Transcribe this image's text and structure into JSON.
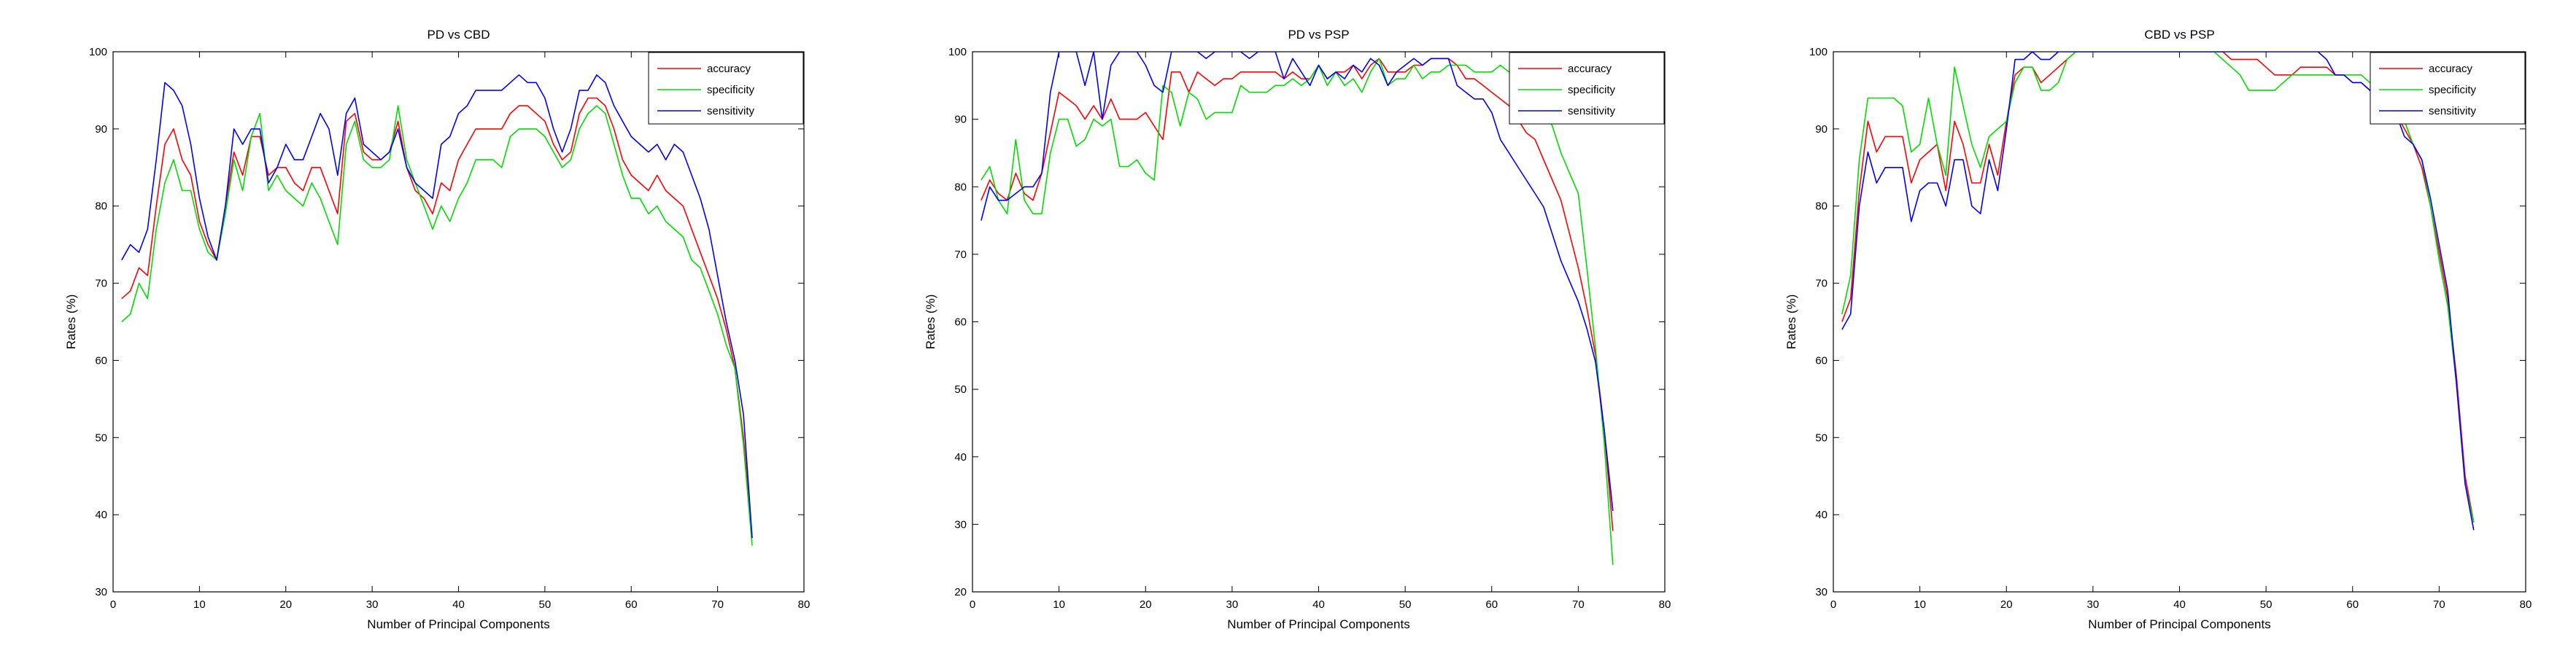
{
  "chart_data": [
    {
      "type": "line",
      "title": "PD vs CBD",
      "xlabel": "Number of Principal Components",
      "ylabel": "Rates (%)",
      "xlim": [
        0,
        80
      ],
      "ylim": [
        30,
        100
      ],
      "xticks": [
        "0",
        "10",
        "20",
        "30",
        "40",
        "50",
        "60",
        "70",
        "80"
      ],
      "yticks": [
        "30",
        "40",
        "50",
        "60",
        "70",
        "80",
        "90",
        "100"
      ],
      "grid": false,
      "legend_position": "top-right",
      "x": [
        1,
        2,
        3,
        4,
        5,
        6,
        7,
        8,
        9,
        10,
        11,
        12,
        13,
        14,
        15,
        16,
        17,
        18,
        19,
        20,
        21,
        22,
        23,
        24,
        25,
        26,
        27,
        28,
        29,
        30,
        31,
        32,
        33,
        34,
        35,
        36,
        37,
        38,
        39,
        40,
        41,
        42,
        43,
        44,
        45,
        46,
        47,
        48,
        49,
        50,
        51,
        52,
        53,
        54,
        55,
        56,
        57,
        58,
        59,
        60,
        61,
        62,
        63,
        64,
        65,
        66,
        67,
        68,
        69,
        70,
        71,
        72,
        73,
        74
      ],
      "series": [
        {
          "name": "accuracy",
          "color": "#ff0000",
          "values": [
            68,
            69,
            72,
            71,
            80,
            88,
            90,
            86,
            84,
            78,
            75,
            73,
            80,
            87,
            84,
            89,
            89,
            84,
            85,
            85,
            83,
            82,
            85,
            85,
            82,
            79,
            91,
            92,
            87,
            86,
            86,
            87,
            91,
            85,
            82,
            81,
            79,
            83,
            82,
            86,
            88,
            90,
            90,
            90,
            90,
            92,
            93,
            93,
            92,
            91,
            88,
            86,
            87,
            92,
            94,
            94,
            93,
            90,
            86,
            84,
            83,
            82,
            84,
            82,
            81,
            80,
            77,
            74,
            71,
            68,
            64,
            59,
            50,
            37
          ]
        },
        {
          "name": "specificity",
          "color": "#00dd00",
          "values": [
            65,
            66,
            70,
            68,
            77,
            83,
            86,
            82,
            82,
            77,
            74,
            73,
            79,
            86,
            82,
            89,
            92,
            82,
            84,
            82,
            81,
            80,
            83,
            81,
            78,
            75,
            88,
            91,
            86,
            85,
            85,
            86,
            93,
            86,
            83,
            80,
            77,
            80,
            78,
            81,
            83,
            86,
            86,
            86,
            85,
            89,
            90,
            90,
            90,
            89,
            87,
            85,
            86,
            90,
            92,
            93,
            92,
            88,
            84,
            81,
            81,
            79,
            80,
            78,
            77,
            76,
            73,
            72,
            69,
            66,
            62,
            59,
            49,
            36
          ]
        },
        {
          "name": "sensitivity",
          "color": "#0000ff",
          "values": [
            73,
            75,
            74,
            77,
            86,
            96,
            95,
            93,
            88,
            81,
            76,
            73,
            80,
            90,
            88,
            90,
            90,
            83,
            85,
            88,
            86,
            86,
            89,
            92,
            90,
            84,
            92,
            94,
            88,
            87,
            86,
            87,
            90,
            85,
            83,
            82,
            81,
            88,
            89,
            92,
            93,
            95,
            95,
            95,
            95,
            96,
            97,
            96,
            96,
            94,
            90,
            87,
            90,
            95,
            95,
            97,
            96,
            93,
            91,
            89,
            88,
            87,
            88,
            86,
            88,
            87,
            84,
            81,
            77,
            71,
            65,
            60,
            53,
            37
          ]
        }
      ]
    },
    {
      "type": "line",
      "title": "PD vs PSP",
      "xlabel": "Number of Principal Components",
      "ylabel": "Rates (%)",
      "xlim": [
        0,
        80
      ],
      "ylim": [
        20,
        100
      ],
      "xticks": [
        "0",
        "10",
        "20",
        "30",
        "40",
        "50",
        "60",
        "70",
        "80"
      ],
      "yticks": [
        "20",
        "30",
        "40",
        "50",
        "60",
        "70",
        "80",
        "90",
        "100"
      ],
      "grid": false,
      "legend_position": "top-right",
      "x": [
        1,
        2,
        3,
        4,
        5,
        6,
        7,
        8,
        9,
        10,
        11,
        12,
        13,
        14,
        15,
        16,
        17,
        18,
        19,
        20,
        21,
        22,
        23,
        24,
        25,
        26,
        27,
        28,
        29,
        30,
        31,
        32,
        33,
        34,
        35,
        36,
        37,
        38,
        39,
        40,
        41,
        42,
        43,
        44,
        45,
        46,
        47,
        48,
        49,
        50,
        51,
        52,
        53,
        54,
        55,
        56,
        57,
        58,
        59,
        60,
        61,
        62,
        63,
        64,
        65,
        66,
        67,
        68,
        69,
        70,
        71,
        72,
        73,
        74
      ],
      "series": [
        {
          "name": "accuracy",
          "color": "#ff0000",
          "values": [
            78,
            81,
            79,
            78,
            82,
            79,
            78,
            82,
            88,
            94,
            93,
            92,
            90,
            92,
            90,
            93,
            90,
            90,
            90,
            91,
            89,
            87,
            97,
            97,
            94,
            97,
            96,
            95,
            96,
            96,
            97,
            97,
            97,
            97,
            97,
            96,
            97,
            96,
            96,
            98,
            96,
            97,
            97,
            98,
            96,
            98,
            99,
            97,
            97,
            97,
            98,
            98,
            99,
            99,
            99,
            98,
            96,
            96,
            95,
            94,
            93,
            92,
            90,
            88,
            87,
            84,
            81,
            78,
            73,
            68,
            62,
            55,
            44,
            29
          ]
        },
        {
          "name": "specificity",
          "color": "#00dd00",
          "values": [
            81,
            83,
            78,
            76,
            87,
            78,
            76,
            76,
            85,
            90,
            90,
            86,
            87,
            90,
            89,
            90,
            83,
            83,
            84,
            82,
            81,
            95,
            94,
            89,
            94,
            93,
            90,
            91,
            91,
            91,
            95,
            94,
            94,
            94,
            95,
            95,
            96,
            95,
            96,
            98,
            95,
            97,
            95,
            96,
            94,
            97,
            99,
            95,
            96,
            96,
            98,
            96,
            97,
            97,
            98,
            98,
            98,
            97,
            97,
            97,
            98,
            97,
            96,
            95,
            94,
            92,
            89,
            85,
            82,
            79,
            68,
            56,
            42,
            24
          ]
        },
        {
          "name": "sensitivity",
          "color": "#0000ff",
          "values": [
            75,
            80,
            78,
            78,
            79,
            80,
            80,
            82,
            94,
            100,
            100,
            100,
            95,
            100,
            90,
            98,
            100,
            100,
            100,
            98,
            95,
            94,
            100,
            100,
            100,
            100,
            99,
            100,
            100,
            100,
            100,
            99,
            100,
            100,
            100,
            96,
            99,
            97,
            95,
            98,
            96,
            97,
            96,
            98,
            97,
            99,
            98,
            95,
            97,
            98,
            99,
            98,
            99,
            99,
            99,
            95,
            94,
            93,
            93,
            91,
            87,
            85,
            83,
            81,
            79,
            77,
            73,
            69,
            66,
            63,
            59,
            54,
            44,
            32
          ]
        }
      ]
    },
    {
      "type": "line",
      "title": "CBD vs PSP",
      "xlabel": "Number of Principal Components",
      "ylabel": "Rates (%)",
      "xlim": [
        0,
        80
      ],
      "ylim": [
        30,
        100
      ],
      "xticks": [
        "0",
        "10",
        "20",
        "30",
        "40",
        "50",
        "60",
        "70",
        "80"
      ],
      "yticks": [
        "30",
        "40",
        "50",
        "60",
        "70",
        "80",
        "90",
        "100"
      ],
      "grid": false,
      "legend_position": "top-right",
      "x": [
        1,
        2,
        3,
        4,
        5,
        6,
        7,
        8,
        9,
        10,
        11,
        12,
        13,
        14,
        15,
        16,
        17,
        18,
        19,
        20,
        21,
        22,
        23,
        24,
        25,
        26,
        27,
        28,
        29,
        30,
        31,
        32,
        33,
        34,
        35,
        36,
        37,
        38,
        39,
        40,
        41,
        42,
        43,
        44,
        45,
        46,
        47,
        48,
        49,
        50,
        51,
        52,
        53,
        54,
        55,
        56,
        57,
        58,
        59,
        60,
        61,
        62,
        63,
        64,
        65,
        66,
        67,
        68,
        69,
        70,
        71,
        72,
        73,
        74
      ],
      "series": [
        {
          "name": "accuracy",
          "color": "#ff0000",
          "values": [
            65,
            68,
            82,
            91,
            87,
            89,
            89,
            89,
            83,
            86,
            87,
            88,
            82,
            91,
            88,
            83,
            83,
            88,
            84,
            91,
            97,
            98,
            98,
            96,
            97,
            98,
            99,
            100,
            100,
            100,
            100,
            100,
            100,
            100,
            100,
            100,
            100,
            100,
            100,
            100,
            100,
            100,
            100,
            100,
            100,
            99,
            99,
            99,
            99,
            98,
            97,
            97,
            97,
            98,
            98,
            98,
            98,
            97,
            97,
            96,
            96,
            95,
            94,
            93,
            92,
            90,
            88,
            85,
            80,
            74,
            68,
            58,
            45,
            39
          ]
        },
        {
          "name": "specificity",
          "color": "#00dd00",
          "values": [
            66,
            71,
            86,
            94,
            94,
            94,
            94,
            93,
            87,
            88,
            94,
            88,
            84,
            98,
            93,
            88,
            85,
            89,
            90,
            91,
            96,
            98,
            98,
            95,
            95,
            96,
            99,
            100,
            100,
            100,
            100,
            100,
            100,
            100,
            100,
            100,
            100,
            100,
            100,
            100,
            100,
            100,
            100,
            100,
            99,
            98,
            97,
            95,
            95,
            95,
            95,
            96,
            97,
            97,
            97,
            97,
            97,
            97,
            97,
            97,
            97,
            96,
            94,
            93,
            92,
            91,
            88,
            86,
            80,
            73,
            67,
            57,
            44,
            39
          ]
        },
        {
          "name": "sensitivity",
          "color": "#0000ff",
          "values": [
            64,
            66,
            80,
            87,
            83,
            85,
            85,
            85,
            78,
            82,
            83,
            83,
            80,
            86,
            86,
            80,
            79,
            86,
            82,
            90,
            99,
            99,
            100,
            99,
            99,
            100,
            100,
            100,
            100,
            100,
            100,
            100,
            100,
            100,
            100,
            100,
            100,
            100,
            100,
            100,
            100,
            100,
            100,
            100,
            100,
            100,
            100,
            100,
            100,
            100,
            100,
            100,
            100,
            100,
            100,
            100,
            99,
            97,
            97,
            96,
            96,
            95,
            93,
            92,
            92,
            89,
            88,
            86,
            81,
            75,
            69,
            57,
            44,
            38
          ]
        }
      ]
    }
  ]
}
